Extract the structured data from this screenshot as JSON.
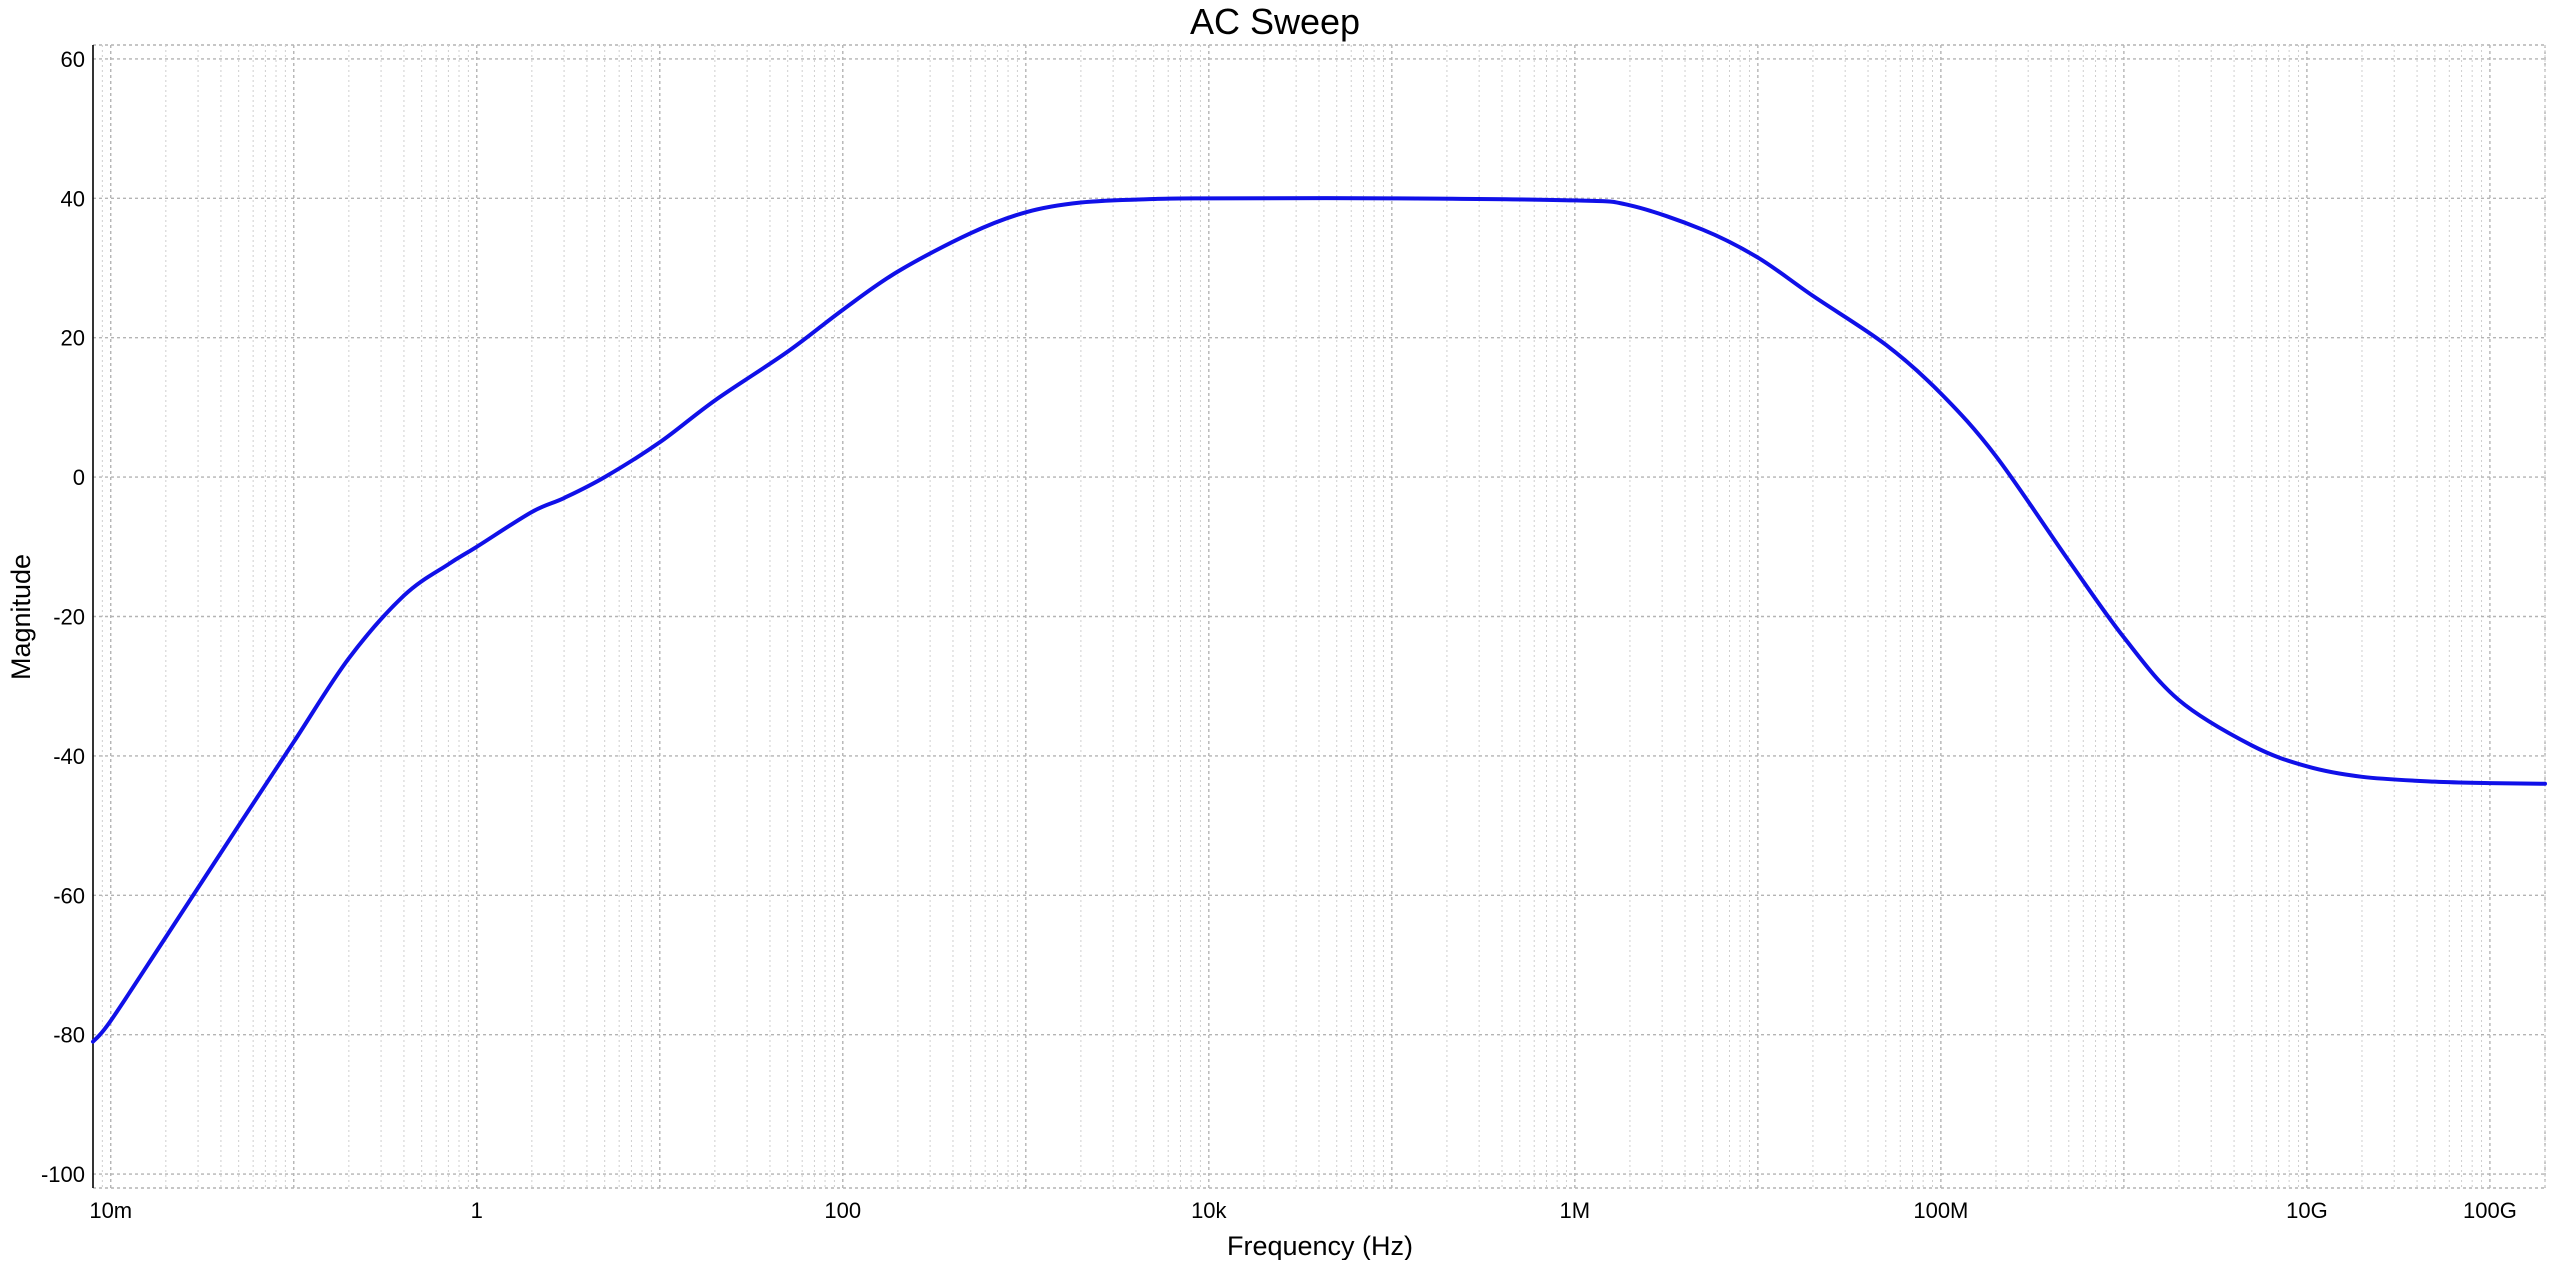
{
  "chart_data": {
    "type": "line",
    "title": "AC Sweep",
    "xlabel": "Frequency (Hz)",
    "ylabel": "Magnitude",
    "xscale": "log",
    "xlim": [
      0.008,
      200000000000
    ],
    "ylim": [
      -102,
      62
    ],
    "grid": true,
    "x_ticks": [
      {
        "value": 0.01,
        "label": "10m"
      },
      {
        "value": 1,
        "label": "1"
      },
      {
        "value": 100,
        "label": "100"
      },
      {
        "value": 10000,
        "label": "10k"
      },
      {
        "value": 1000000,
        "label": "1M"
      },
      {
        "value": 100000000,
        "label": "100M"
      },
      {
        "value": 10000000000,
        "label": "10G"
      },
      {
        "value": 100000000000,
        "label": "100G"
      }
    ],
    "y_ticks": [
      {
        "value": 60,
        "label": "60"
      },
      {
        "value": 40,
        "label": "40"
      },
      {
        "value": 20,
        "label": "20"
      },
      {
        "value": 0,
        "label": "0"
      },
      {
        "value": -20,
        "label": "-20"
      },
      {
        "value": -40,
        "label": "-40"
      },
      {
        "value": -60,
        "label": "-60"
      },
      {
        "value": -80,
        "label": "-80"
      },
      {
        "value": -100,
        "label": "-100"
      }
    ],
    "series": [
      {
        "color": "#1010e8",
        "x": [
          0.008,
          0.01,
          0.02,
          0.05,
          0.1,
          0.2,
          0.4,
          0.7,
          1,
          2,
          3,
          5,
          10,
          20,
          50,
          100,
          200,
          500,
          1000,
          2000,
          5000,
          10000,
          100000,
          1000000,
          2000000,
          5000000,
          10000000,
          20000000,
          50000000,
          100000000,
          200000000,
          500000000,
          1000000000,
          2000000000,
          5000000000,
          10000000000,
          20000000000,
          50000000000,
          100000000000,
          200000000000
        ],
        "y": [
          -81,
          -78,
          -66,
          -50,
          -38,
          -26,
          -17,
          -12.5,
          -10,
          -5,
          -3,
          0,
          5,
          11,
          18,
          24,
          29.5,
          35,
          38,
          39.4,
          39.9,
          40,
          40,
          39.7,
          39,
          35.5,
          31.5,
          26,
          19,
          12,
          3,
          -12,
          -23,
          -32,
          -38.5,
          -41.5,
          -43,
          -43.7,
          -43.9,
          -44
        ]
      }
    ]
  }
}
